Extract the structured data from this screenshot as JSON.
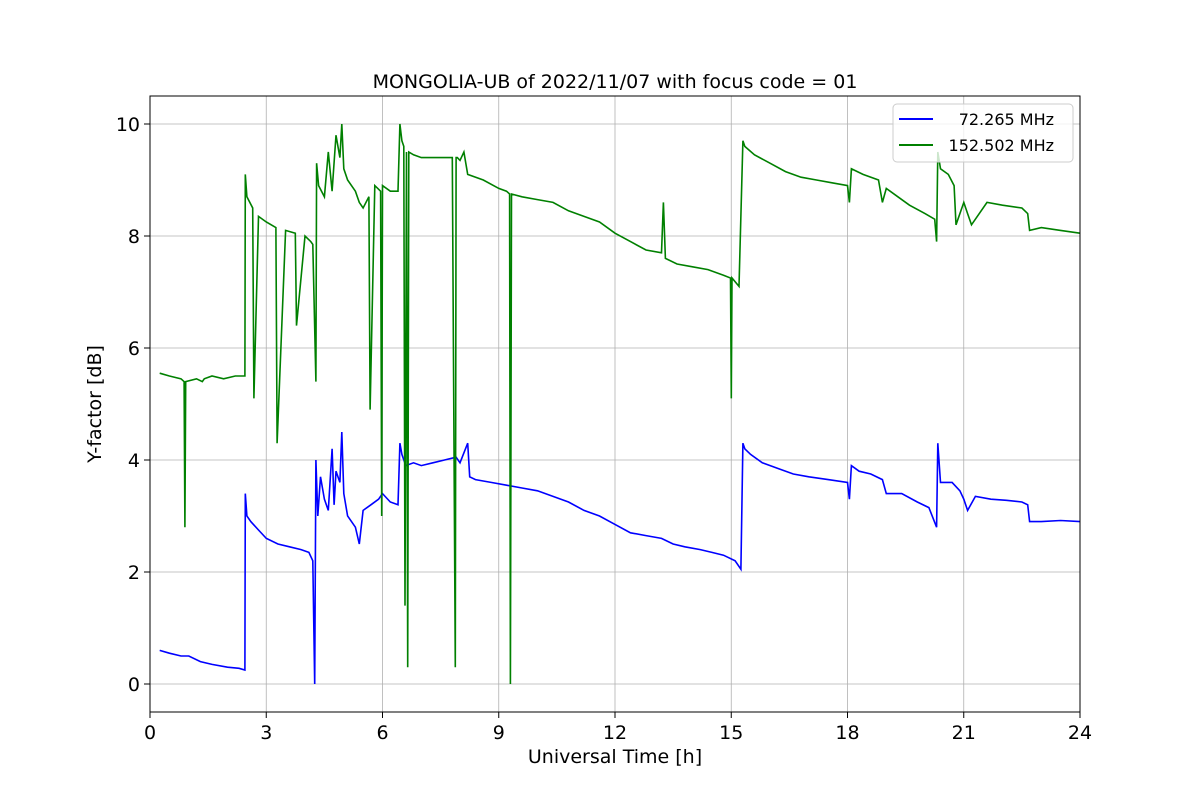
{
  "chart_data": {
    "type": "line",
    "title": "MONGOLIA-UB of 2022/11/07 with focus code = 01",
    "xlabel": "Universal Time [h]",
    "ylabel": "Y-factor [dB]",
    "xlim": [
      0,
      24
    ],
    "ylim": [
      -0.5,
      10.5
    ],
    "xticks": [
      0,
      3,
      6,
      9,
      12,
      15,
      18,
      21,
      24
    ],
    "yticks": [
      0,
      2,
      4,
      6,
      8,
      10
    ],
    "xtick_labels": [
      "0",
      "3",
      "6",
      "9",
      "12",
      "15",
      "18",
      "21",
      "24"
    ],
    "ytick_labels": [
      "0",
      "2",
      "4",
      "6",
      "8",
      "10"
    ],
    "grid": true,
    "legend_position": "top-right",
    "series": [
      {
        "name": "72.265 MHz",
        "color": "#0000ff",
        "x": [
          0.25,
          0.5,
          0.8,
          1.0,
          1.3,
          1.6,
          2.0,
          2.3,
          2.45,
          2.46,
          2.5,
          2.6,
          2.8,
          3.0,
          3.3,
          3.6,
          3.9,
          4.1,
          4.2,
          4.25,
          4.28,
          4.33,
          4.4,
          4.5,
          4.6,
          4.7,
          4.75,
          4.8,
          4.9,
          4.95,
          5.0,
          5.1,
          5.3,
          5.4,
          5.5,
          5.7,
          5.9,
          6.0,
          6.2,
          6.4,
          6.45,
          6.5,
          6.6,
          6.8,
          7.0,
          7.3,
          7.6,
          7.9,
          8.0,
          8.2,
          8.25,
          8.4,
          8.8,
          9.2,
          9.6,
          10.0,
          10.4,
          10.8,
          11.2,
          11.6,
          12.0,
          12.4,
          12.8,
          13.2,
          13.5,
          13.8,
          14.2,
          14.5,
          14.8,
          15.1,
          15.25,
          15.3,
          15.35,
          15.5,
          15.8,
          16.2,
          16.6,
          17.0,
          17.5,
          18.0,
          18.05,
          18.1,
          18.3,
          18.6,
          18.9,
          19.0,
          19.4,
          19.8,
          20.1,
          20.3,
          20.33,
          20.4,
          20.7,
          20.9,
          21.0,
          21.1,
          21.3,
          21.7,
          22.1,
          22.5,
          22.65,
          22.7,
          23.0,
          23.5,
          24.0
        ],
        "y": [
          0.6,
          0.55,
          0.5,
          0.5,
          0.4,
          0.35,
          0.3,
          0.28,
          0.25,
          3.4,
          3.0,
          2.9,
          2.75,
          2.6,
          2.5,
          2.45,
          2.4,
          2.35,
          2.2,
          0.0,
          4.0,
          3.0,
          3.7,
          3.3,
          3.1,
          4.2,
          3.2,
          3.8,
          3.6,
          4.5,
          3.4,
          3.0,
          2.8,
          2.5,
          3.1,
          3.2,
          3.3,
          3.4,
          3.25,
          3.2,
          4.3,
          4.1,
          3.9,
          3.95,
          3.9,
          3.95,
          4.0,
          4.05,
          3.95,
          4.3,
          3.7,
          3.65,
          3.6,
          3.55,
          3.5,
          3.45,
          3.35,
          3.25,
          3.1,
          3.0,
          2.85,
          2.7,
          2.65,
          2.6,
          2.5,
          2.45,
          2.4,
          2.35,
          2.3,
          2.2,
          2.05,
          4.3,
          4.2,
          4.1,
          3.95,
          3.85,
          3.75,
          3.7,
          3.65,
          3.6,
          3.3,
          3.9,
          3.8,
          3.75,
          3.65,
          3.4,
          3.4,
          3.25,
          3.15,
          2.8,
          4.3,
          3.6,
          3.6,
          3.45,
          3.3,
          3.1,
          3.35,
          3.3,
          3.28,
          3.25,
          3.2,
          2.9,
          2.9,
          2.92,
          2.9
        ]
      },
      {
        "name": "152.502 MHz",
        "color": "#008000",
        "x": [
          0.25,
          0.5,
          0.8,
          0.88,
          0.9,
          0.92,
          1.2,
          1.35,
          1.4,
          1.6,
          1.9,
          2.2,
          2.45,
          2.46,
          2.5,
          2.65,
          2.68,
          2.8,
          3.0,
          3.25,
          3.28,
          3.5,
          3.75,
          3.78,
          4.0,
          4.15,
          4.2,
          4.28,
          4.3,
          4.35,
          4.5,
          4.6,
          4.7,
          4.8,
          4.9,
          4.95,
          5.0,
          5.1,
          5.3,
          5.4,
          5.5,
          5.65,
          5.68,
          5.8,
          5.95,
          5.98,
          6.0,
          6.2,
          6.4,
          6.45,
          6.5,
          6.55,
          6.58,
          6.62,
          6.65,
          6.68,
          6.8,
          7.0,
          7.4,
          7.8,
          7.88,
          7.9,
          7.93,
          8.0,
          8.1,
          8.2,
          8.6,
          9.0,
          9.2,
          9.28,
          9.3,
          9.33,
          9.6,
          10.0,
          10.4,
          10.8,
          11.2,
          11.6,
          12.0,
          12.4,
          12.8,
          13.2,
          13.25,
          13.3,
          13.6,
          14.0,
          14.4,
          14.8,
          14.98,
          15.0,
          15.02,
          15.2,
          15.3,
          15.35,
          15.6,
          16.0,
          16.4,
          16.8,
          17.2,
          17.6,
          18.0,
          18.05,
          18.1,
          18.4,
          18.8,
          18.9,
          19.0,
          19.3,
          19.6,
          20.0,
          20.25,
          20.3,
          20.33,
          20.4,
          20.6,
          20.75,
          20.8,
          21.0,
          21.1,
          21.2,
          21.6,
          22.0,
          22.5,
          22.65,
          22.7,
          23.0,
          23.5,
          24.0
        ],
        "y": [
          5.55,
          5.5,
          5.45,
          5.4,
          2.8,
          5.4,
          5.45,
          5.4,
          5.45,
          5.5,
          5.45,
          5.5,
          5.5,
          9.1,
          8.7,
          8.5,
          5.1,
          8.35,
          8.25,
          8.15,
          4.3,
          8.1,
          8.05,
          6.4,
          8.0,
          7.9,
          7.85,
          5.4,
          9.3,
          8.9,
          8.7,
          9.5,
          8.8,
          9.8,
          9.4,
          10.0,
          9.2,
          9.0,
          8.8,
          8.6,
          8.5,
          8.7,
          4.9,
          8.9,
          8.8,
          3.0,
          8.9,
          8.8,
          8.8,
          10.0,
          9.7,
          9.6,
          1.4,
          9.5,
          0.3,
          9.5,
          9.45,
          9.4,
          9.4,
          9.4,
          0.3,
          9.4,
          9.4,
          9.35,
          9.5,
          9.1,
          9.0,
          8.85,
          8.8,
          8.75,
          0.0,
          8.75,
          8.7,
          8.65,
          8.6,
          8.45,
          8.35,
          8.25,
          8.05,
          7.9,
          7.75,
          7.7,
          8.6,
          7.6,
          7.5,
          7.45,
          7.4,
          7.3,
          7.25,
          5.1,
          7.25,
          7.1,
          9.7,
          9.6,
          9.45,
          9.3,
          9.15,
          9.05,
          9.0,
          8.95,
          8.9,
          8.6,
          9.2,
          9.1,
          9.0,
          8.6,
          8.85,
          8.7,
          8.55,
          8.4,
          8.3,
          7.9,
          9.5,
          9.2,
          9.1,
          8.9,
          8.2,
          8.6,
          8.4,
          8.2,
          8.6,
          8.55,
          8.5,
          8.4,
          8.1,
          8.15,
          8.1,
          8.05
        ]
      }
    ]
  }
}
